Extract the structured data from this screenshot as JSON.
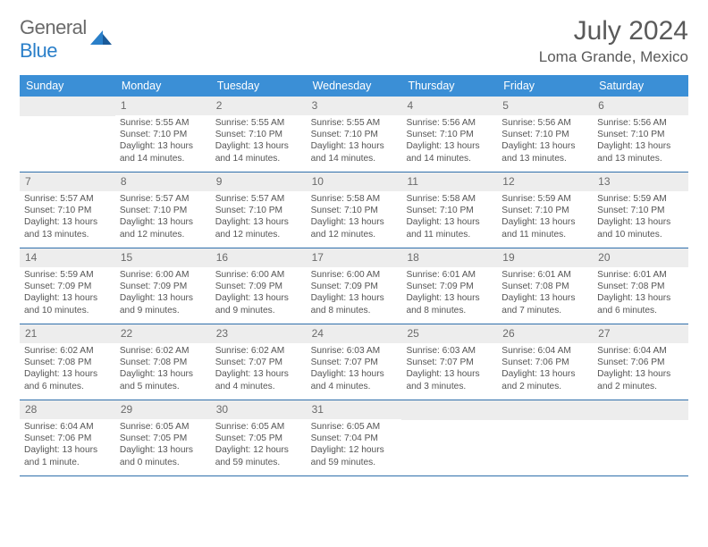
{
  "logo": {
    "general": "General",
    "blue": "Blue"
  },
  "title": "July 2024",
  "location": "Loma Grande, Mexico",
  "colors": {
    "header_bg": "#3b8fd6",
    "header_text": "#ffffff",
    "daynum_bg": "#ededed",
    "border": "#2f6fab",
    "body_text": "#555555",
    "logo_gray": "#6a6a6a",
    "logo_blue": "#2a7fc9"
  },
  "dow": [
    "Sunday",
    "Monday",
    "Tuesday",
    "Wednesday",
    "Thursday",
    "Friday",
    "Saturday"
  ],
  "weeks": [
    [
      {
        "n": "",
        "sr": "",
        "ss": "",
        "dl": ""
      },
      {
        "n": "1",
        "sr": "Sunrise: 5:55 AM",
        "ss": "Sunset: 7:10 PM",
        "dl": "Daylight: 13 hours and 14 minutes."
      },
      {
        "n": "2",
        "sr": "Sunrise: 5:55 AM",
        "ss": "Sunset: 7:10 PM",
        "dl": "Daylight: 13 hours and 14 minutes."
      },
      {
        "n": "3",
        "sr": "Sunrise: 5:55 AM",
        "ss": "Sunset: 7:10 PM",
        "dl": "Daylight: 13 hours and 14 minutes."
      },
      {
        "n": "4",
        "sr": "Sunrise: 5:56 AM",
        "ss": "Sunset: 7:10 PM",
        "dl": "Daylight: 13 hours and 14 minutes."
      },
      {
        "n": "5",
        "sr": "Sunrise: 5:56 AM",
        "ss": "Sunset: 7:10 PM",
        "dl": "Daylight: 13 hours and 13 minutes."
      },
      {
        "n": "6",
        "sr": "Sunrise: 5:56 AM",
        "ss": "Sunset: 7:10 PM",
        "dl": "Daylight: 13 hours and 13 minutes."
      }
    ],
    [
      {
        "n": "7",
        "sr": "Sunrise: 5:57 AM",
        "ss": "Sunset: 7:10 PM",
        "dl": "Daylight: 13 hours and 13 minutes."
      },
      {
        "n": "8",
        "sr": "Sunrise: 5:57 AM",
        "ss": "Sunset: 7:10 PM",
        "dl": "Daylight: 13 hours and 12 minutes."
      },
      {
        "n": "9",
        "sr": "Sunrise: 5:57 AM",
        "ss": "Sunset: 7:10 PM",
        "dl": "Daylight: 13 hours and 12 minutes."
      },
      {
        "n": "10",
        "sr": "Sunrise: 5:58 AM",
        "ss": "Sunset: 7:10 PM",
        "dl": "Daylight: 13 hours and 12 minutes."
      },
      {
        "n": "11",
        "sr": "Sunrise: 5:58 AM",
        "ss": "Sunset: 7:10 PM",
        "dl": "Daylight: 13 hours and 11 minutes."
      },
      {
        "n": "12",
        "sr": "Sunrise: 5:59 AM",
        "ss": "Sunset: 7:10 PM",
        "dl": "Daylight: 13 hours and 11 minutes."
      },
      {
        "n": "13",
        "sr": "Sunrise: 5:59 AM",
        "ss": "Sunset: 7:10 PM",
        "dl": "Daylight: 13 hours and 10 minutes."
      }
    ],
    [
      {
        "n": "14",
        "sr": "Sunrise: 5:59 AM",
        "ss": "Sunset: 7:09 PM",
        "dl": "Daylight: 13 hours and 10 minutes."
      },
      {
        "n": "15",
        "sr": "Sunrise: 6:00 AM",
        "ss": "Sunset: 7:09 PM",
        "dl": "Daylight: 13 hours and 9 minutes."
      },
      {
        "n": "16",
        "sr": "Sunrise: 6:00 AM",
        "ss": "Sunset: 7:09 PM",
        "dl": "Daylight: 13 hours and 9 minutes."
      },
      {
        "n": "17",
        "sr": "Sunrise: 6:00 AM",
        "ss": "Sunset: 7:09 PM",
        "dl": "Daylight: 13 hours and 8 minutes."
      },
      {
        "n": "18",
        "sr": "Sunrise: 6:01 AM",
        "ss": "Sunset: 7:09 PM",
        "dl": "Daylight: 13 hours and 8 minutes."
      },
      {
        "n": "19",
        "sr": "Sunrise: 6:01 AM",
        "ss": "Sunset: 7:08 PM",
        "dl": "Daylight: 13 hours and 7 minutes."
      },
      {
        "n": "20",
        "sr": "Sunrise: 6:01 AM",
        "ss": "Sunset: 7:08 PM",
        "dl": "Daylight: 13 hours and 6 minutes."
      }
    ],
    [
      {
        "n": "21",
        "sr": "Sunrise: 6:02 AM",
        "ss": "Sunset: 7:08 PM",
        "dl": "Daylight: 13 hours and 6 minutes."
      },
      {
        "n": "22",
        "sr": "Sunrise: 6:02 AM",
        "ss": "Sunset: 7:08 PM",
        "dl": "Daylight: 13 hours and 5 minutes."
      },
      {
        "n": "23",
        "sr": "Sunrise: 6:02 AM",
        "ss": "Sunset: 7:07 PM",
        "dl": "Daylight: 13 hours and 4 minutes."
      },
      {
        "n": "24",
        "sr": "Sunrise: 6:03 AM",
        "ss": "Sunset: 7:07 PM",
        "dl": "Daylight: 13 hours and 4 minutes."
      },
      {
        "n": "25",
        "sr": "Sunrise: 6:03 AM",
        "ss": "Sunset: 7:07 PM",
        "dl": "Daylight: 13 hours and 3 minutes."
      },
      {
        "n": "26",
        "sr": "Sunrise: 6:04 AM",
        "ss": "Sunset: 7:06 PM",
        "dl": "Daylight: 13 hours and 2 minutes."
      },
      {
        "n": "27",
        "sr": "Sunrise: 6:04 AM",
        "ss": "Sunset: 7:06 PM",
        "dl": "Daylight: 13 hours and 2 minutes."
      }
    ],
    [
      {
        "n": "28",
        "sr": "Sunrise: 6:04 AM",
        "ss": "Sunset: 7:06 PM",
        "dl": "Daylight: 13 hours and 1 minute."
      },
      {
        "n": "29",
        "sr": "Sunrise: 6:05 AM",
        "ss": "Sunset: 7:05 PM",
        "dl": "Daylight: 13 hours and 0 minutes."
      },
      {
        "n": "30",
        "sr": "Sunrise: 6:05 AM",
        "ss": "Sunset: 7:05 PM",
        "dl": "Daylight: 12 hours and 59 minutes."
      },
      {
        "n": "31",
        "sr": "Sunrise: 6:05 AM",
        "ss": "Sunset: 7:04 PM",
        "dl": "Daylight: 12 hours and 59 minutes."
      },
      {
        "n": "",
        "sr": "",
        "ss": "",
        "dl": ""
      },
      {
        "n": "",
        "sr": "",
        "ss": "",
        "dl": ""
      },
      {
        "n": "",
        "sr": "",
        "ss": "",
        "dl": ""
      }
    ]
  ]
}
